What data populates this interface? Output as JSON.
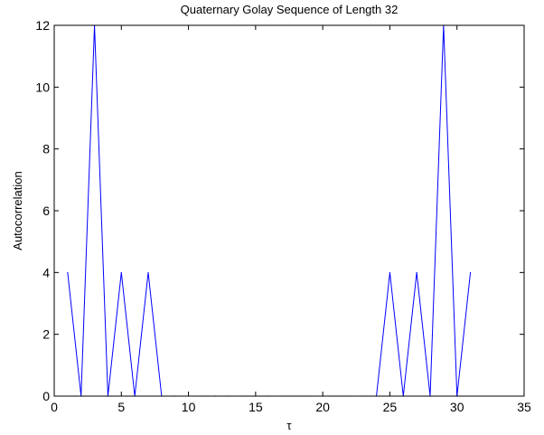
{
  "chart_data": {
    "type": "line",
    "title": "Quaternary Golay Sequence of Length 32",
    "xlabel": "τ",
    "ylabel": "Autocorrelation",
    "xlim": [
      0,
      35
    ],
    "ylim": [
      0,
      12
    ],
    "xticks": [
      0,
      5,
      10,
      15,
      20,
      25,
      30,
      35
    ],
    "yticks": [
      0,
      2,
      4,
      6,
      8,
      10,
      12
    ],
    "grid": false,
    "series": [
      {
        "color": "#0000ff",
        "x": [
          1,
          2,
          3,
          4,
          5,
          6,
          7,
          8,
          9,
          10,
          11,
          12,
          13,
          14,
          15,
          16,
          17,
          18,
          19,
          20,
          21,
          22,
          23,
          24,
          25,
          26,
          27,
          28,
          29,
          30,
          31
        ],
        "y": [
          4,
          0,
          12,
          0,
          4,
          0,
          4,
          0,
          0,
          0,
          0,
          0,
          0,
          0,
          0,
          0,
          0,
          0,
          0,
          0,
          0,
          0,
          0,
          0,
          4,
          0,
          4,
          0,
          12,
          0,
          4
        ]
      }
    ]
  }
}
